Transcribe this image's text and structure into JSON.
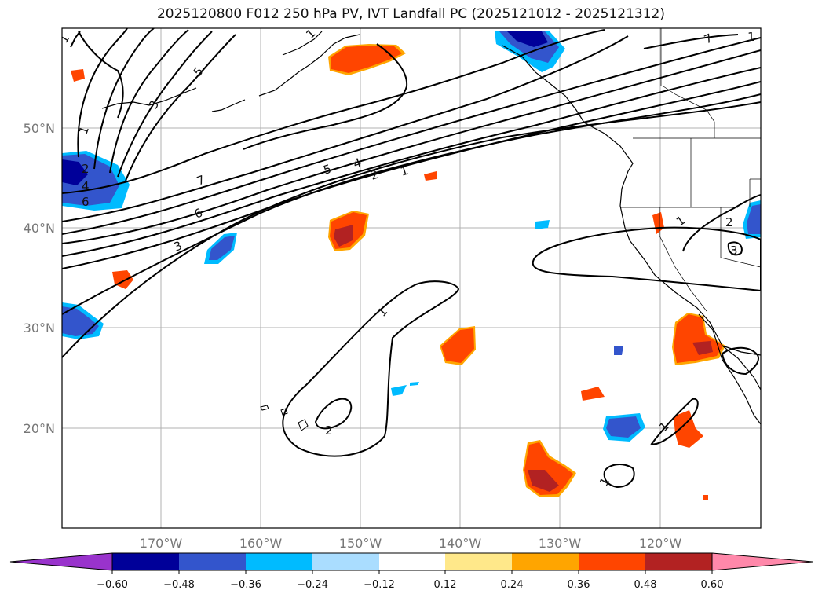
{
  "title": "2025120800 F012 250 hPa PV, IVT Landfall PC (2025121012 - 2025121312)",
  "lat_labels": [
    "50°N",
    "40°N",
    "30°N",
    "20°N"
  ],
  "lon_labels": [
    "170°W",
    "160°W",
    "150°W",
    "140°W",
    "130°W",
    "120°W"
  ],
  "colorbar": {
    "tick_labels": [
      "−0.60",
      "−0.48",
      "−0.36",
      "−0.24",
      "−0.12",
      "0.12",
      "0.24",
      "0.36",
      "0.48",
      "0.60"
    ],
    "colors": [
      "#9933cc",
      "#000099",
      "#3355cc",
      "#00bbff",
      "#aaddff",
      "#ffffff",
      "#ffe88a",
      "#ffa500",
      "#ff4500",
      "#b22222",
      "#ff88aa"
    ]
  },
  "pv_contour_labels": [
    "1",
    "1",
    "3",
    "5",
    "1",
    "2",
    "4",
    "6",
    "7",
    "6",
    "3",
    "5",
    "4",
    "2",
    "1",
    "1",
    "2",
    "7",
    "1",
    "2",
    "3",
    "1",
    "1",
    "1"
  ],
  "colors": {
    "frame": "#000000",
    "grid": "#b0b0b0",
    "contour": "#000000"
  }
}
